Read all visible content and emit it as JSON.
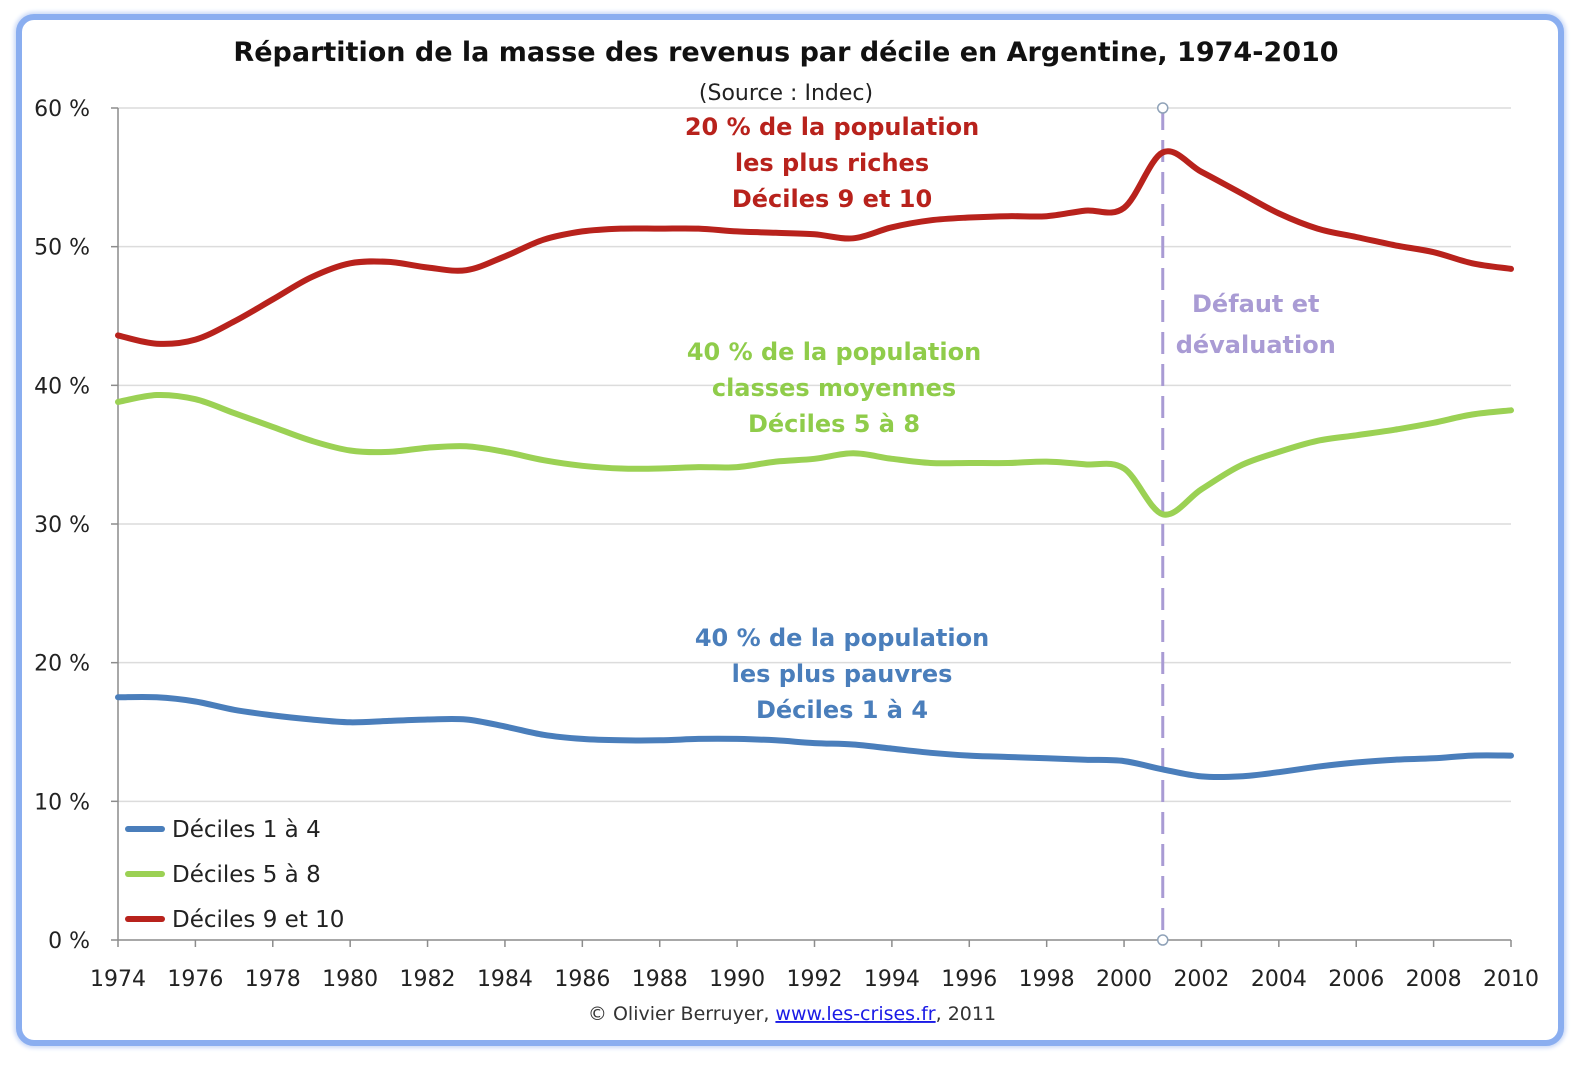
{
  "chart_data": {
    "type": "line",
    "title": "Répartition de la masse des revenus par décile en Argentine, 1974-2010",
    "subtitle": "(Source : Indec)",
    "xlabel": "",
    "ylabel": "",
    "xlim": [
      1974,
      2010
    ],
    "ylim": [
      0,
      60
    ],
    "x_ticks": [
      "1974",
      "1976",
      "1978",
      "1980",
      "1982",
      "1984",
      "1986",
      "1988",
      "1990",
      "1992",
      "1994",
      "1996",
      "1998",
      "2000",
      "2002",
      "2004",
      "2006",
      "2008",
      "2010"
    ],
    "y_ticks": [
      "0 %",
      "10 %",
      "20 %",
      "30 %",
      "40 %",
      "50 %",
      "60 %"
    ],
    "grid": "horizontal",
    "legend_position": "bottom-left",
    "x": [
      1974,
      1975,
      1976,
      1977,
      1978,
      1979,
      1980,
      1981,
      1982,
      1983,
      1984,
      1985,
      1986,
      1987,
      1988,
      1989,
      1990,
      1991,
      1992,
      1993,
      1994,
      1995,
      1996,
      1997,
      1998,
      1999,
      2000,
      2001,
      2002,
      2003,
      2004,
      2005,
      2006,
      2007,
      2008,
      2009,
      2010
    ],
    "series": [
      {
        "name": "Déciles 1 à 4",
        "color": "#4a7ebb",
        "values": [
          17.5,
          17.5,
          17.2,
          16.6,
          16.2,
          15.9,
          15.7,
          15.8,
          15.9,
          15.9,
          15.4,
          14.8,
          14.5,
          14.4,
          14.4,
          14.5,
          14.5,
          14.4,
          14.2,
          14.1,
          13.8,
          13.5,
          13.3,
          13.2,
          13.1,
          13.0,
          12.9,
          12.3,
          11.8,
          11.8,
          12.1,
          12.5,
          12.8,
          13.0,
          13.1,
          13.3,
          13.3
        ]
      },
      {
        "name": "Déciles 5 à 8",
        "color": "#9bd154",
        "values": [
          38.8,
          39.3,
          39.0,
          38.0,
          37.0,
          36.0,
          35.3,
          35.2,
          35.5,
          35.6,
          35.2,
          34.6,
          34.2,
          34.0,
          34.0,
          34.1,
          34.1,
          34.5,
          34.7,
          35.1,
          34.7,
          34.4,
          34.4,
          34.4,
          34.5,
          34.3,
          34.0,
          30.7,
          32.5,
          34.2,
          35.2,
          36.0,
          36.4,
          36.8,
          37.3,
          37.9,
          38.2
        ]
      },
      {
        "name": "Déciles 9 et 10",
        "color": "#b8221c",
        "values": [
          43.6,
          43.0,
          43.3,
          44.6,
          46.2,
          47.8,
          48.8,
          48.9,
          48.5,
          48.3,
          49.3,
          50.5,
          51.1,
          51.3,
          51.3,
          51.3,
          51.1,
          51.0,
          50.9,
          50.6,
          51.4,
          51.9,
          52.1,
          52.2,
          52.2,
          52.6,
          52.8,
          56.8,
          55.4,
          53.9,
          52.4,
          51.3,
          50.7,
          50.1,
          49.6,
          48.8,
          48.4
        ]
      }
    ],
    "annotations": [
      {
        "series": "Déciles 9 et 10",
        "lines": [
          "20 % de la population",
          "les plus riches",
          "Déciles 9 et 10"
        ]
      },
      {
        "series": "Déciles 5 à 8",
        "lines": [
          "40 % de la population",
          "classes moyennes",
          "Déciles 5 à 8"
        ]
      },
      {
        "series": "Déciles 1 à 4",
        "lines": [
          "40 % de la population",
          "les plus pauvres",
          "Déciles 1 à 4"
        ]
      }
    ],
    "event": {
      "x": 2001,
      "label_lines": [
        "Défaut et",
        "dévaluation"
      ],
      "color": "#a99bd4"
    },
    "footer": {
      "prefix": "© Olivier Berruyer, ",
      "link": "www.les-crises.fr",
      "suffix": ",  2011"
    }
  }
}
